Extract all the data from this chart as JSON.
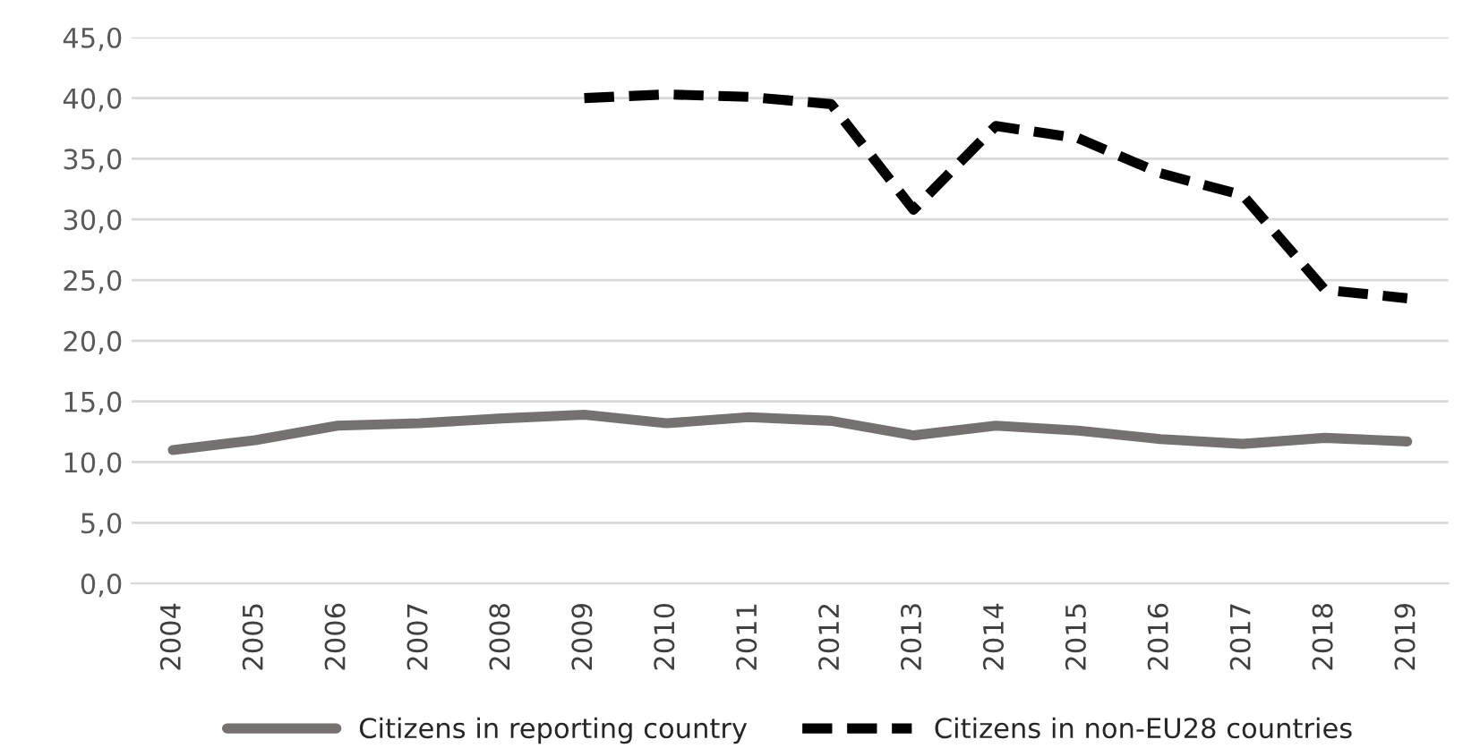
{
  "chart_data": {
    "type": "line",
    "categories": [
      "2004",
      "2005",
      "2006",
      "2007",
      "2008",
      "2009",
      "2010",
      "2011",
      "2012",
      "2013",
      "2014",
      "2015",
      "2016",
      "2017",
      "2018",
      "2019"
    ],
    "series": [
      {
        "name": "Citizens in reporting country",
        "color": "#767171",
        "line_style": "solid",
        "values": [
          11.0,
          11.8,
          13.0,
          13.2,
          13.6,
          13.9,
          13.2,
          13.7,
          13.4,
          12.2,
          13.0,
          12.6,
          11.9,
          11.5,
          12.0,
          11.7
        ]
      },
      {
        "name": "Citizens in non-EU28 countries",
        "color": "#000000",
        "line_style": "dashed",
        "values": [
          null,
          null,
          null,
          null,
          null,
          40.0,
          40.3,
          40.1,
          39.5,
          30.8,
          37.7,
          36.7,
          33.8,
          32.0,
          24.2,
          23.5
        ]
      }
    ],
    "ylim": [
      0,
      45
    ],
    "yticks": [
      {
        "value": 0,
        "label": "0,0"
      },
      {
        "value": 5,
        "label": "5,0"
      },
      {
        "value": 10,
        "label": "10,0"
      },
      {
        "value": 15,
        "label": "15,0"
      },
      {
        "value": 20,
        "label": "20,0"
      },
      {
        "value": 25,
        "label": "25,0"
      },
      {
        "value": 30,
        "label": "30,0"
      },
      {
        "value": 35,
        "label": "35,0"
      },
      {
        "value": 40,
        "label": "40,0"
      },
      {
        "value": 45,
        "label": "45,0"
      }
    ],
    "grid": "y",
    "legend": "bottom",
    "marker": "none"
  }
}
